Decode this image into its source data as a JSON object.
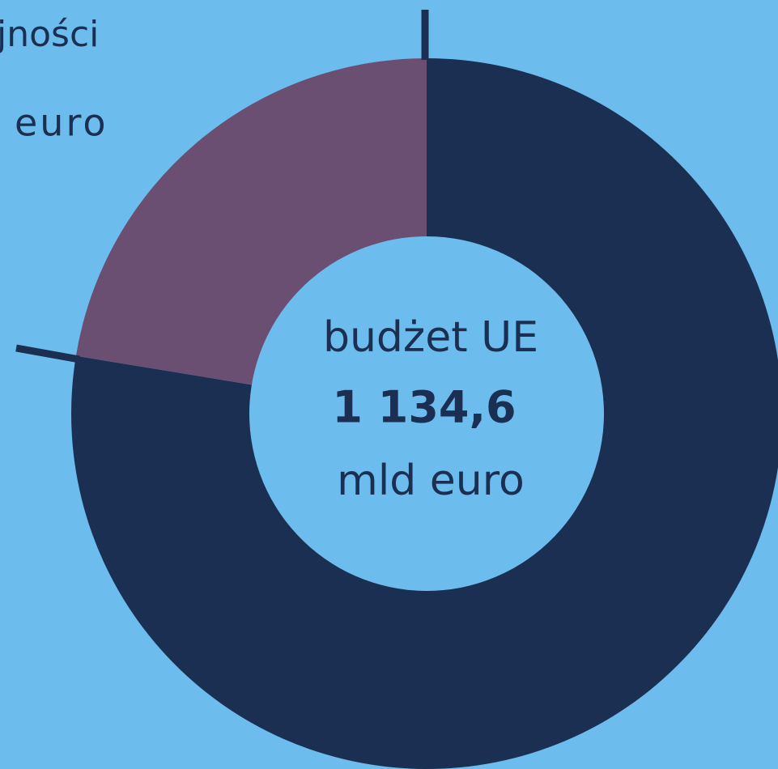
{
  "chart_data": {
    "type": "donut",
    "values": [
      77.6,
      22.4
    ],
    "colors": [
      "#1b2f52",
      "#6b4f72"
    ],
    "center_text": [
      "budżet UE",
      "1 134,6",
      "mld euro"
    ],
    "annotations": [
      "jności",
      "euro"
    ]
  }
}
